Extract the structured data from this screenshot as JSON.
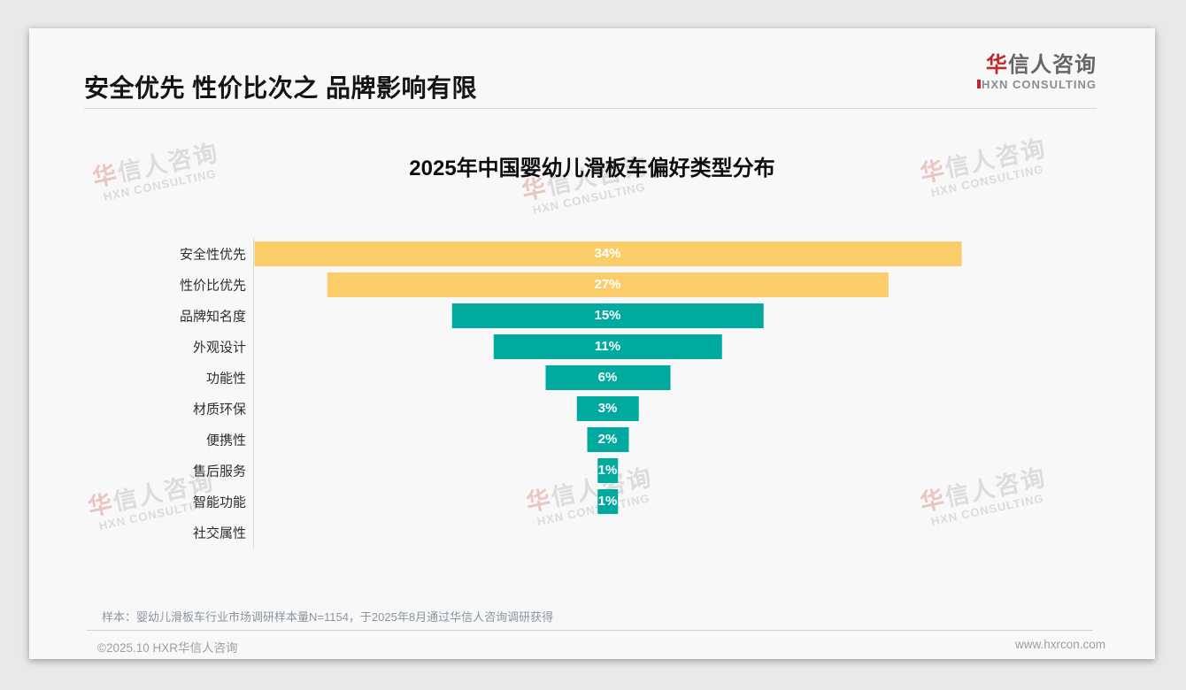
{
  "header": {
    "title": "安全优先 性价比次之 品牌影响有限",
    "logo": {
      "cn_red": "华",
      "cn_rest": "信人咨询",
      "en": "HXN CONSULTING"
    }
  },
  "watermark": {
    "cn_red": "华",
    "cn_rest": "信人咨询",
    "en": "HXN CONSULTING"
  },
  "chart_data": {
    "type": "bar",
    "orientation": "horizontal-centered-funnel",
    "title": "2025年中国婴幼儿滑板车偏好类型分布",
    "categories": [
      "安全性优先",
      "性价比优先",
      "品牌知名度",
      "外观设计",
      "功能性",
      "材质环保",
      "便携性",
      "售后服务",
      "智能功能",
      "社交属性"
    ],
    "values": [
      34,
      27,
      15,
      11,
      6,
      3,
      2,
      1,
      1,
      0
    ],
    "value_labels": [
      "34%",
      "27%",
      "15%",
      "11%",
      "6%",
      "3%",
      "2%",
      "1%",
      "1%",
      ""
    ],
    "colors": [
      "#facd69",
      "#facd69",
      "#00aa9e",
      "#00aa9e",
      "#00aa9e",
      "#00aa9e",
      "#00aa9e",
      "#00aa9e",
      "#00aa9e",
      "#00aa9e"
    ],
    "unit": "%",
    "xlim": [
      0,
      34
    ],
    "xlabel": "",
    "ylabel": "",
    "grid": false,
    "legend": "none"
  },
  "footnote": "样本：婴幼儿滑板车行业市场调研样本量N=1154，于2025年8月通过华信人咨询调研获得",
  "footer": {
    "left": "©2025.10 HXR华信人咨询",
    "right": "www.hxrcon.com"
  }
}
